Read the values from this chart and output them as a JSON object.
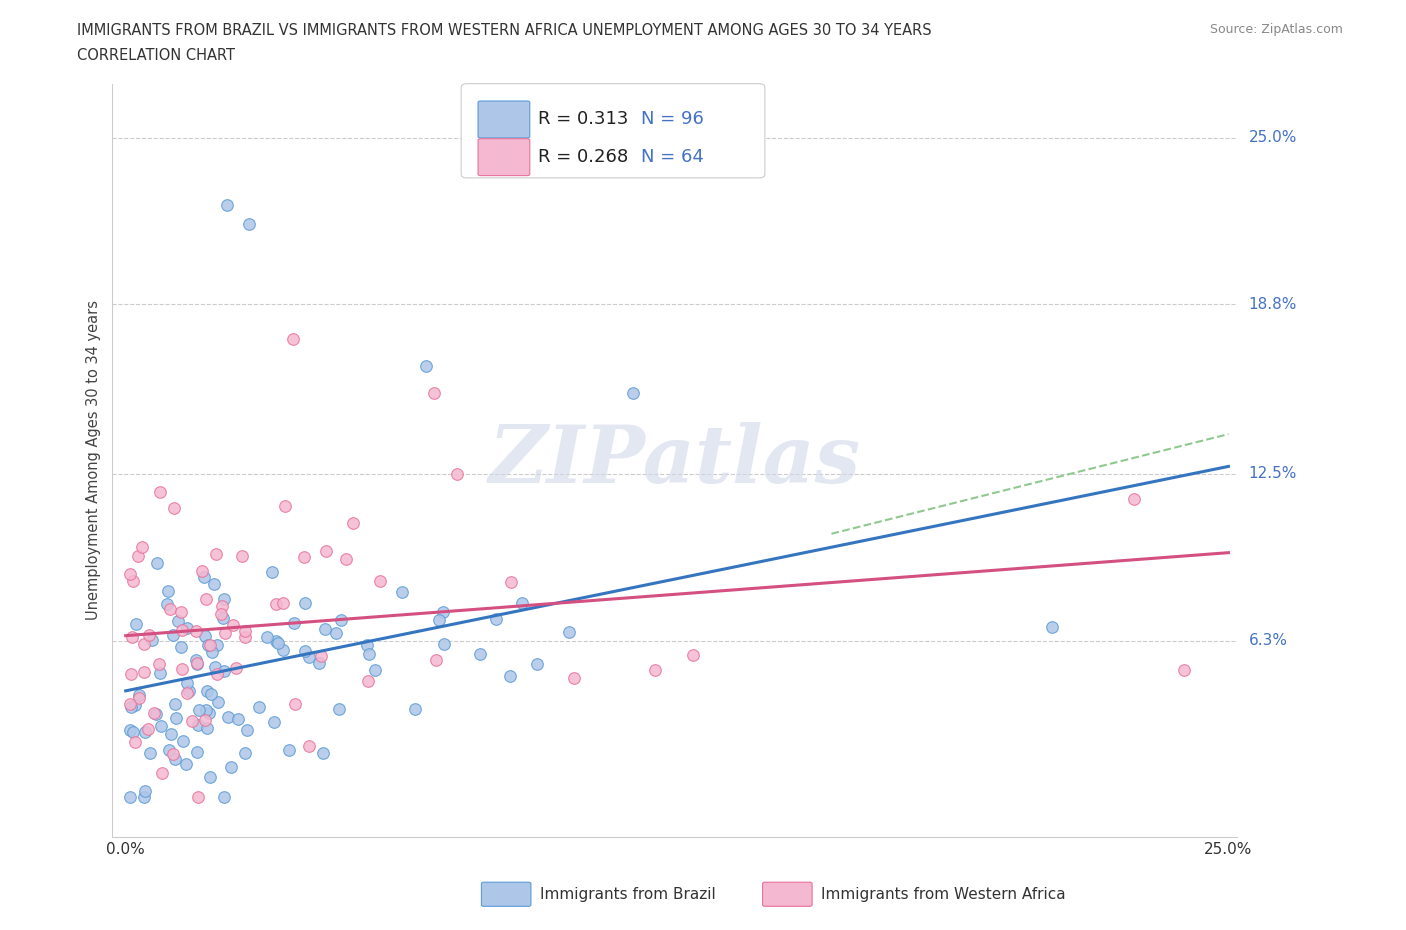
{
  "title_line1": "IMMIGRANTS FROM BRAZIL VS IMMIGRANTS FROM WESTERN AFRICA UNEMPLOYMENT AMONG AGES 30 TO 34 YEARS",
  "title_line2": "CORRELATION CHART",
  "source_text": "Source: ZipAtlas.com",
  "ylabel": "Unemployment Among Ages 30 to 34 years",
  "xlim": [
    0.0,
    0.25
  ],
  "ylim": [
    0.0,
    0.25
  ],
  "ytick_labels": [
    "6.3%",
    "12.5%",
    "18.8%",
    "25.0%"
  ],
  "ytick_values": [
    0.063,
    0.125,
    0.188,
    0.25
  ],
  "xtick_labels": [
    "0.0%",
    "25.0%"
  ],
  "xtick_values": [
    0.0,
    0.25
  ],
  "legend_brazil_r": "R = 0.313",
  "legend_brazil_n": "N = 96",
  "legend_africa_r": "R = 0.268",
  "legend_africa_n": "N = 64",
  "color_brazil_fill": "#aec6e8",
  "color_brazil_edge": "#5b9bd5",
  "color_africa_fill": "#f4b8d0",
  "color_africa_edge": "#e8729a",
  "color_brazil_line": "#3575c0",
  "color_africa_line": "#d45080",
  "color_dashed": "#90c890",
  "watermark": "ZIPatlas",
  "brazil_label": "Immigrants from Brazil",
  "africa_label": "Immigrants from Western Africa"
}
